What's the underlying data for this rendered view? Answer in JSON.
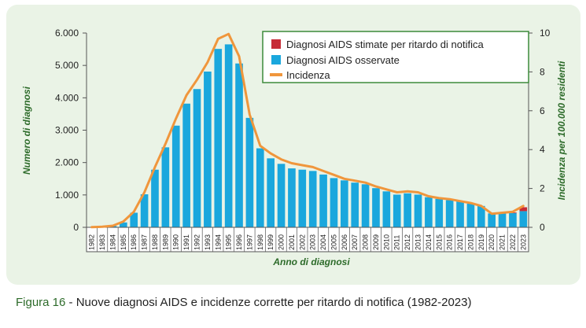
{
  "chart_data": {
    "type": "bar",
    "title": "",
    "xlabel": "Anno di diagnosi",
    "ylabel": "Numero di diagnosi",
    "y2label": "Incidenza per 100.000 residenti",
    "ylim": [
      0,
      6000
    ],
    "y2lim": [
      0,
      10
    ],
    "yticks": [
      "0",
      "1.000",
      "2.000",
      "3.000",
      "4.000",
      "5.000",
      "6.000"
    ],
    "y2ticks": [
      "0",
      "2",
      "4",
      "6",
      "8",
      "10"
    ],
    "categories": [
      "1982",
      "1983",
      "1984",
      "1985",
      "1986",
      "1987",
      "1988",
      "1989",
      "1990",
      "1991",
      "1992",
      "1993",
      "1994",
      "1995",
      "1996",
      "1997",
      "1998",
      "1999",
      "2000",
      "2001",
      "2002",
      "2003",
      "2004",
      "2005",
      "2006",
      "2007",
      "2008",
      "2009",
      "2010",
      "2011",
      "2012",
      "2013",
      "2014",
      "2015",
      "2016",
      "2017",
      "2018",
      "2019",
      "2020",
      "2021",
      "2022",
      "2023"
    ],
    "series": [
      {
        "name": "Diagnosi AIDS stimate per ritardo di notifica",
        "color": "#c62b36",
        "values": [
          0,
          0,
          0,
          0,
          0,
          0,
          0,
          0,
          0,
          0,
          0,
          0,
          0,
          0,
          0,
          0,
          0,
          0,
          0,
          0,
          0,
          0,
          0,
          0,
          0,
          0,
          0,
          0,
          0,
          0,
          0,
          0,
          0,
          0,
          0,
          0,
          0,
          0,
          0,
          5,
          20,
          120
        ]
      },
      {
        "name": "Diagnosi AIDS osservate",
        "color": "#1aa7dd",
        "values": [
          5,
          15,
          40,
          150,
          450,
          1020,
          1780,
          2470,
          3140,
          3820,
          4270,
          4810,
          5510,
          5650,
          5060,
          3380,
          2440,
          2130,
          1960,
          1820,
          1780,
          1740,
          1630,
          1520,
          1450,
          1380,
          1330,
          1210,
          1110,
          1010,
          1050,
          1010,
          930,
          880,
          840,
          810,
          730,
          660,
          430,
          430,
          440,
          500
        ]
      },
      {
        "name": "Incidenza",
        "color": "#f0963c",
        "axis": "right",
        "values": [
          0.01,
          0.03,
          0.08,
          0.3,
          0.8,
          1.8,
          3.1,
          4.3,
          5.6,
          6.8,
          7.6,
          8.5,
          9.7,
          9.95,
          8.8,
          5.8,
          4.2,
          3.8,
          3.5,
          3.3,
          3.2,
          3.1,
          2.9,
          2.7,
          2.5,
          2.4,
          2.3,
          2.1,
          1.95,
          1.8,
          1.85,
          1.8,
          1.6,
          1.5,
          1.45,
          1.35,
          1.25,
          1.1,
          0.7,
          0.75,
          0.8,
          1.1
        ]
      }
    ],
    "legend_position": "top-right"
  },
  "caption": {
    "figure_label": "Figura 16",
    "text": " - Nuove diagnosi AIDS e incidenze corrette per ritardo di notifica (1982-2023)"
  },
  "colors": {
    "panel": "#eaf3e6",
    "axis_label": "#2d6b2a",
    "legend_border": "#3c8a3a"
  }
}
